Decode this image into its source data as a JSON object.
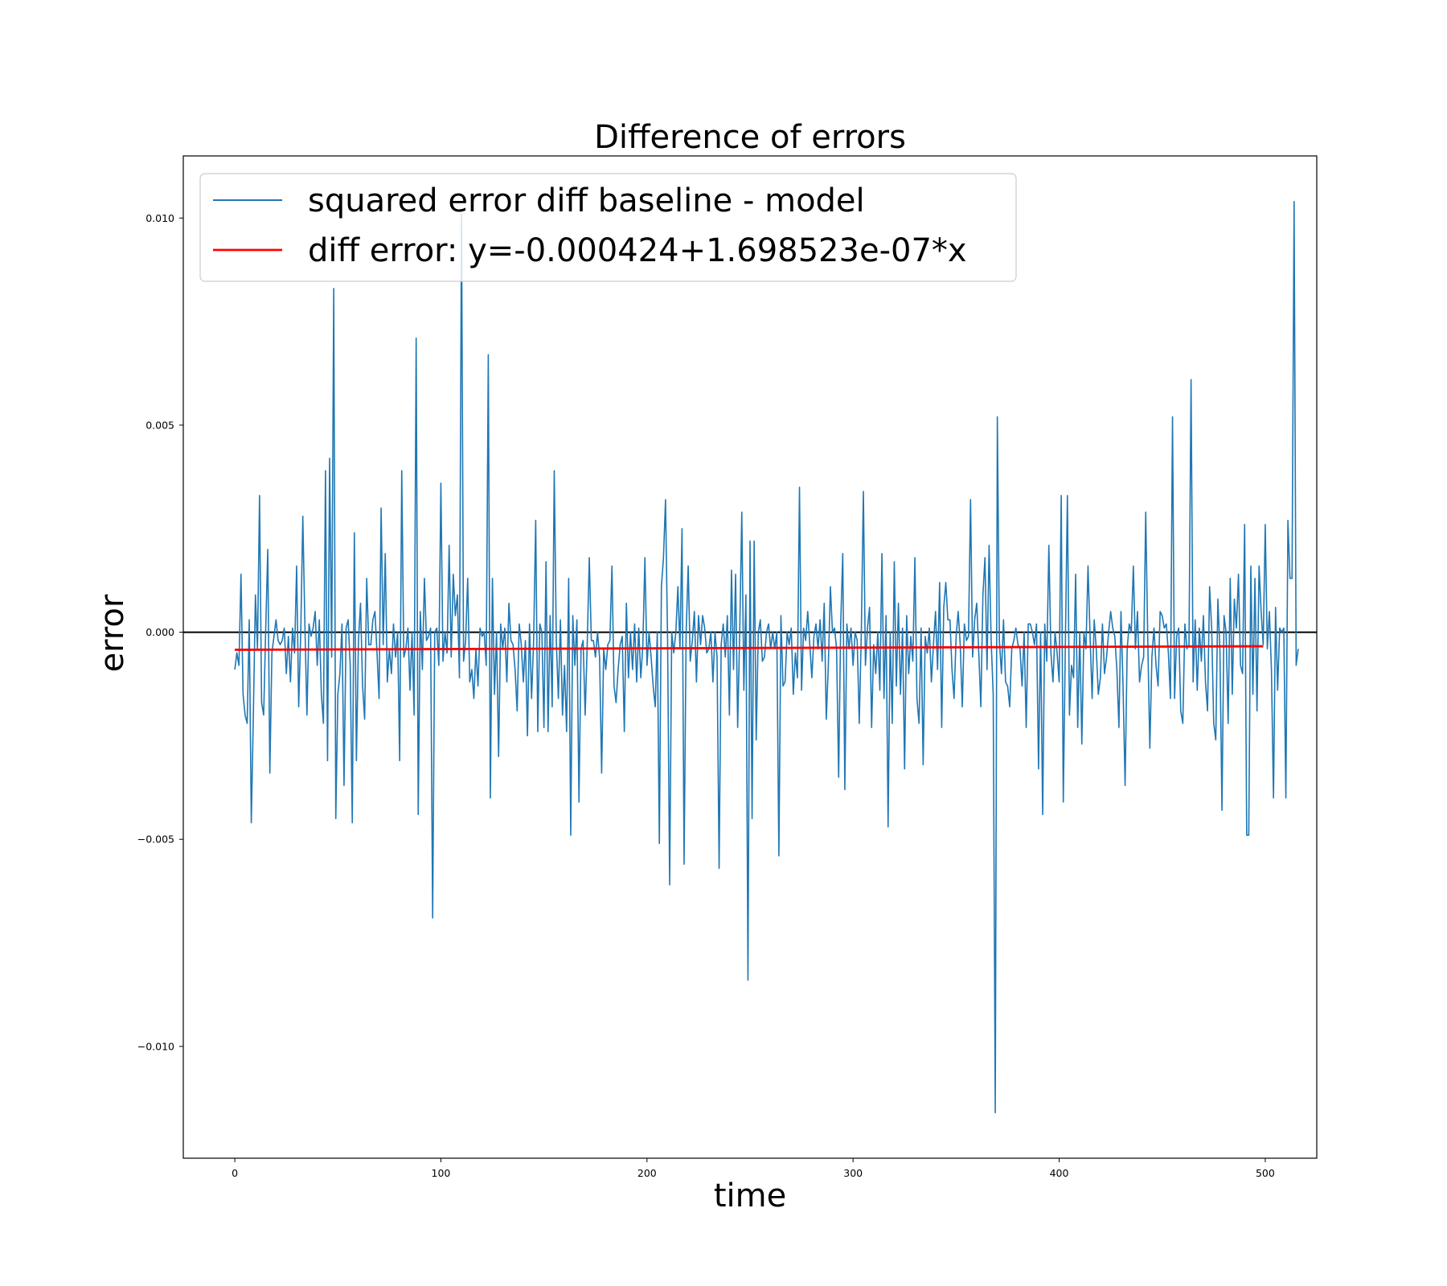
{
  "chart_data": {
    "type": "line",
    "title": "Difference of errors",
    "xlabel": "time",
    "ylabel": "error",
    "xlim": [
      -25,
      525
    ],
    "ylim": [
      -0.0127,
      0.0115
    ],
    "x_ticks": [
      0,
      100,
      200,
      300,
      400,
      500
    ],
    "x_tick_labels": [
      "0",
      "100",
      "200",
      "300",
      "400",
      "500"
    ],
    "y_ticks": [
      -0.01,
      -0.005,
      0.0,
      0.005,
      0.01
    ],
    "y_tick_labels": [
      "−0.010",
      "−0.005",
      "0.000",
      "0.005",
      "0.010"
    ],
    "grid": false,
    "legend_position": "upper-left",
    "reference_line": {
      "y": 0,
      "color": "#000000"
    },
    "series": [
      {
        "name": "squared error diff baseline - model",
        "color": "#1f77b4",
        "x_start": 0,
        "x_step": 1,
        "values": [
          -0.0009,
          -0.0005,
          -0.0008,
          0.0014,
          -0.0015,
          -0.002,
          -0.0022,
          0.0003,
          -0.0046,
          -0.002,
          0.0009,
          -0.0004,
          0.0033,
          -0.0017,
          -0.002,
          0.0001,
          0.002,
          -0.0034,
          -0.0005,
          -0.0001,
          0.0003,
          -0.0002,
          -0.0003,
          -0.0002,
          0.0001,
          -0.001,
          -0.0001,
          -0.0012,
          0.0001,
          -0.0005,
          0.0016,
          -0.0018,
          0.0,
          0.0028,
          0.0002,
          -0.002,
          0.0002,
          -0.0001,
          0.0001,
          0.0005,
          -0.0008,
          0.0003,
          -0.0015,
          -0.0022,
          0.0039,
          -0.0031,
          0.0042,
          -0.0006,
          0.0083,
          -0.0045,
          -0.0015,
          -0.001,
          0.0002,
          -0.0037,
          0.0001,
          0.0003,
          -0.0008,
          -0.0046,
          0.0024,
          -0.0031,
          -0.0002,
          0.0007,
          -0.0013,
          -0.0021,
          0.0013,
          -0.0003,
          -0.0003,
          0.0003,
          0.0005,
          -0.0005,
          -0.0016,
          0.003,
          -0.0003,
          0.0019,
          -0.0012,
          -0.0004,
          -0.001,
          0.0002,
          -0.0006,
          0.0,
          -0.0031,
          0.0039,
          -0.0006,
          -0.0004,
          0.0001,
          -0.0014,
          0.0,
          -0.002,
          0.0071,
          -0.0044,
          0.0005,
          -0.0009,
          0.0013,
          -0.0002,
          -0.0001,
          0.0001,
          -0.0069,
          0.0,
          0.0001,
          -0.0008,
          0.0036,
          -0.0007,
          0.0,
          -0.0005,
          0.0021,
          -0.0006,
          0.0014,
          0.0004,
          0.0009,
          -0.0011,
          0.0101,
          -0.0007,
          -0.0002,
          0.0013,
          -0.0012,
          -0.0009,
          -0.0016,
          -0.0004,
          -0.0013,
          0.0001,
          -0.0001,
          0.0,
          -0.0008,
          0.0067,
          -0.004,
          0.0013,
          -0.0015,
          0.0,
          -0.003,
          0.0002,
          -0.0004,
          0.0001,
          -0.0012,
          0.0007,
          -0.0002,
          -0.0003,
          -0.0009,
          -0.0019,
          0.0002,
          -0.0003,
          -0.0012,
          -0.0002,
          -0.0025,
          0.0002,
          -0.0016,
          -0.0002,
          0.0027,
          -0.0024,
          0.0002,
          0.0,
          -0.0023,
          0.0017,
          -0.0024,
          0.0004,
          -0.0018,
          0.0039,
          -0.0002,
          -0.0016,
          0.0003,
          -0.002,
          -0.0008,
          -0.0024,
          0.0013,
          -0.0049,
          0.0004,
          -0.0008,
          0.0003,
          -0.0041,
          -0.0004,
          -0.0002,
          -0.002,
          -0.0003,
          0.0018,
          -0.0002,
          -0.0002,
          -0.0006,
          0.0,
          -0.0006,
          -0.0034,
          -0.0004,
          -0.0009,
          -0.0003,
          -0.0002,
          0.0016,
          -0.0013,
          -0.0017,
          -0.0009,
          -0.0003,
          -0.0001,
          -0.0024,
          0.0007,
          -0.0011,
          0.0,
          -0.0009,
          0.0002,
          -0.0012,
          0.0001,
          -0.0011,
          -0.0003,
          0.0018,
          -0.0008,
          0.0,
          -0.0006,
          -0.0013,
          -0.0018,
          0.0,
          -0.0051,
          0.0011,
          0.0018,
          0.0032,
          -0.0002,
          -0.0061,
          0.0,
          -0.0005,
          0.0,
          0.0011,
          -0.0004,
          0.0025,
          -0.0056,
          0.0,
          0.0016,
          -0.0007,
          -0.0002,
          0.0005,
          -0.0012,
          0.0004,
          -0.0003,
          0.0004,
          0.0001,
          -0.0005,
          -0.0004,
          0.0,
          -0.0012,
          0.0,
          -0.0006,
          -0.0057,
          -0.0003,
          0.0002,
          -0.0006,
          0.0004,
          -0.002,
          0.0015,
          -0.0009,
          0.0014,
          -0.0023,
          0.0,
          0.0029,
          -0.0014,
          0.0009,
          -0.0084,
          0.0022,
          -0.0045,
          0.0022,
          -0.0026,
          0.0,
          0.0003,
          -0.0007,
          -0.0006,
          0.0,
          0.0002,
          -0.0004,
          0.0,
          -0.0004,
          0.0,
          -0.0054,
          0.0004,
          -0.0013,
          -0.0012,
          0.0,
          -0.0003,
          0.0001,
          -0.0015,
          -0.0005,
          -0.0011,
          0.0035,
          -0.0014,
          0.0001,
          -0.0002,
          0.0005,
          -0.0003,
          -0.0011,
          -0.0001,
          0.0002,
          -0.0004,
          0.0003,
          -0.0007,
          0.0007,
          -0.0021,
          -0.0008,
          0.0011,
          0.0,
          0.0001,
          -0.0004,
          -0.0035,
          0.0002,
          0.0019,
          -0.0038,
          0.0002,
          -0.0004,
          0.0001,
          -0.0008,
          0.0,
          -0.0002,
          -0.0022,
          0.0,
          0.0034,
          -0.0008,
          0.0001,
          0.0006,
          -0.0023,
          -0.0003,
          -0.001,
          0.0,
          -0.0014,
          0.0019,
          -0.0016,
          0.0004,
          -0.0047,
          0.0,
          -0.0022,
          0.0017,
          -0.0013,
          0.0007,
          -0.0015,
          0.0001,
          -0.0033,
          0.0004,
          -0.001,
          -0.0001,
          -0.0007,
          0.0018,
          -0.0016,
          -0.0022,
          0.0001,
          -0.0032,
          -0.0001,
          -0.0005,
          0.0001,
          -0.0012,
          -0.0003,
          0.0005,
          -0.0009,
          0.0012,
          -0.0023,
          0.0006,
          0.0012,
          0.0003,
          0.0003,
          -0.0009,
          -0.0016,
          -0.0001,
          0.0005,
          -0.0003,
          -0.0018,
          0.0002,
          -0.0002,
          -0.0001,
          0.0032,
          -0.0006,
          0.0003,
          0.0007,
          -0.0005,
          -0.0018,
          0.0009,
          0.0018,
          -0.0009,
          0.0021,
          -0.0002,
          -0.0015,
          -0.0116,
          0.0052,
          -0.0002,
          -0.001,
          0.0003,
          -0.0012,
          -0.0013,
          -0.0018,
          -0.0004,
          -0.0002,
          0.0001,
          -0.0003,
          -0.0004,
          -0.0013,
          0.0,
          -0.0023,
          0.0002,
          0.0002,
          0.0,
          -0.0003,
          0.0002,
          -0.0033,
          0.0,
          -0.0044,
          0.0002,
          -0.0007,
          0.0021,
          -0.0005,
          -0.0012,
          0.0,
          -0.0005,
          -0.0012,
          0.0033,
          -0.0041,
          -0.0003,
          0.0033,
          -0.002,
          -0.0008,
          -0.0011,
          0.0014,
          -0.0023,
          0.0,
          -0.0027,
          0.0,
          -0.0004,
          0.0016,
          -0.0001,
          -0.0016,
          0.0003,
          -0.0004,
          -0.0015,
          -0.0011,
          0.0002,
          -0.001,
          -0.0006,
          0.0,
          0.0005,
          0.0001,
          -0.0001,
          -0.0009,
          -0.0023,
          0.0005,
          -0.0013,
          -0.0037,
          -0.0004,
          0.0002,
          0.0,
          0.0016,
          -0.0004,
          0.0005,
          -0.0012,
          -0.0008,
          -0.0006,
          0.0029,
          -0.0002,
          -0.0028,
          -0.0006,
          0.0001,
          -0.0008,
          -0.0013,
          0.0005,
          0.0004,
          0.0001,
          0.0002,
          -0.0005,
          -0.0016,
          0.0052,
          -0.0016,
          -0.0001,
          0.0001,
          -0.0019,
          -0.0022,
          0.0002,
          -0.0004,
          -0.0003,
          0.0061,
          -0.0012,
          0.0003,
          -0.0014,
          0.0001,
          -0.0007,
          0.0004,
          -0.0012,
          -0.0019,
          0.0011,
          0.0001,
          -0.0022,
          -0.0026,
          0.0008,
          -0.0004,
          -0.0043,
          0.0004,
          0.0,
          -0.0022,
          0.0013,
          -0.0015,
          0.0008,
          0.0001,
          0.0014,
          -0.0008,
          -0.001,
          0.0026,
          -0.0049,
          -0.0049,
          0.0016,
          -0.0015,
          0.0013,
          -0.0019,
          0.0016,
          0.0005,
          -0.0003,
          0.0026,
          -0.0004,
          0.0005,
          -0.0009,
          -0.004,
          0.0006,
          -0.0014,
          0.0001,
          0.0,
          0.0001,
          -0.004,
          0.0027,
          0.0013,
          0.0013,
          0.0104,
          -0.0008,
          -0.0004
        ]
      },
      {
        "name": "diff error: y=-0.000424+1.698523e-07*x",
        "color": "#ff0000",
        "x": [
          0,
          499
        ],
        "values": [
          -0.000424,
          -0.000339
        ]
      }
    ]
  }
}
